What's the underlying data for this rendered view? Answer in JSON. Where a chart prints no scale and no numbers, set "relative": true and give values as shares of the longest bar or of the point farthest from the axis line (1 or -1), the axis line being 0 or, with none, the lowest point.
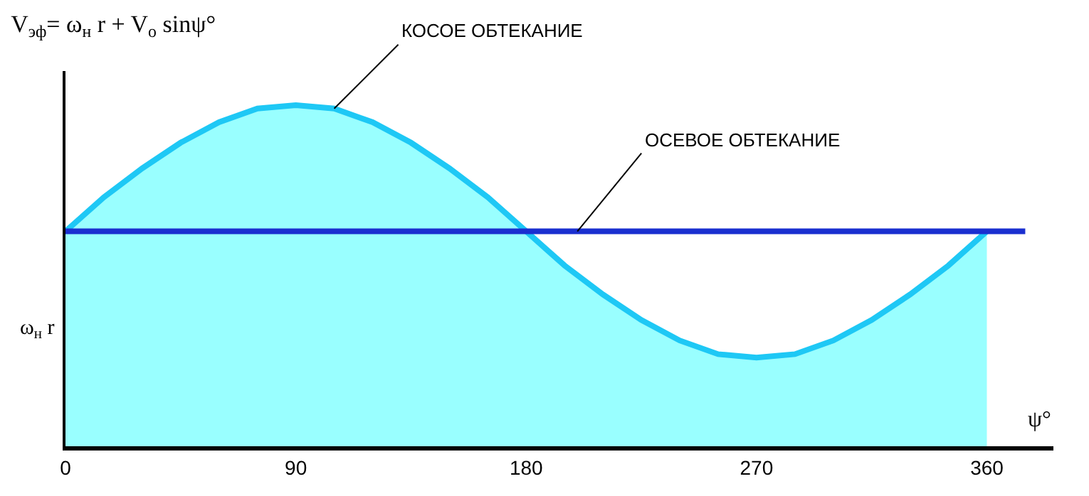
{
  "chart_data": {
    "type": "area",
    "relative": true,
    "title": "V$_{эф}$= ω$_{н}$ r + V$_{о}$ sinψ°",
    "xlabel": "ψ°",
    "x": [
      0,
      15,
      30,
      45,
      60,
      75,
      90,
      105,
      120,
      135,
      150,
      165,
      180,
      195,
      210,
      225,
      240,
      255,
      270,
      285,
      300,
      315,
      330,
      345,
      360
    ],
    "xlim": [
      0,
      386
    ],
    "xticks": [
      0,
      90,
      180,
      270,
      360
    ],
    "series": [
      {
        "color": "#1ec8f5",
        "values": [
          0.63,
          0.73,
          0.815,
          0.89,
          0.95,
          0.99,
          1.0,
          0.99,
          0.95,
          0.89,
          0.815,
          0.73,
          0.63,
          0.53,
          0.445,
          0.37,
          0.31,
          0.27,
          0.26,
          0.27,
          0.31,
          0.37,
          0.445,
          0.53,
          0.63
        ]
      },
      {
        "type": "line",
        "color": "#1a2fd0",
        "x": [
          0,
          375
        ],
        "values": [
          0.63,
          0.63
        ]
      }
    ],
    "annotations": [
      {
        "text": "КОСОЕ ОБТЕКАНИЕ",
        "x": 105,
        "y": 0.99
      },
      {
        "text": "ОСЕВОЕ ОБТЕКАНИЕ",
        "x": 200,
        "y": 0.63
      },
      "ω$_{н}$ r"
    ]
  }
}
